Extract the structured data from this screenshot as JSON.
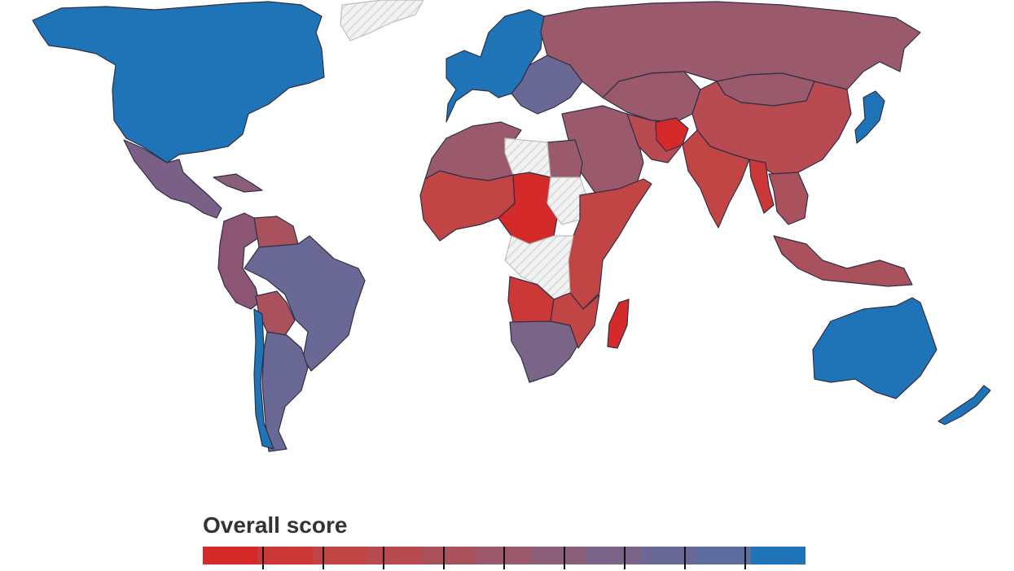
{
  "legend": {
    "title": "Overall score",
    "colors": [
      "#d42a2a",
      "#cc3838",
      "#c24545",
      "#b84a52",
      "#a9525e",
      "#9a5a6c",
      "#8a5f7a",
      "#7a6488",
      "#6a6894",
      "#5e6c9e",
      "#1f74b8"
    ]
  },
  "map": {
    "no_data_pattern": "hatched-grey",
    "regions": [
      {
        "id": "north-america",
        "color": "#1f74b8"
      },
      {
        "id": "greenland",
        "color": "nodata"
      },
      {
        "id": "mexico-central-america",
        "color": "#7a5f86"
      },
      {
        "id": "caribbean",
        "color": "#8a5f7a"
      },
      {
        "id": "south-america-west",
        "color": "#8c5574"
      },
      {
        "id": "venezuela",
        "color": "#a9525e"
      },
      {
        "id": "brazil",
        "color": "#6a6894"
      },
      {
        "id": "bolivia",
        "color": "#a9525e"
      },
      {
        "id": "argentina",
        "color": "#6a6894"
      },
      {
        "id": "chile",
        "color": "#1f74b8"
      },
      {
        "id": "western-europe",
        "color": "#1f74b8"
      },
      {
        "id": "eastern-europe",
        "color": "#6a6894"
      },
      {
        "id": "russia",
        "color": "#9a5a6c"
      },
      {
        "id": "north-africa",
        "color": "#9a5a6c"
      },
      {
        "id": "libya",
        "color": "nodata"
      },
      {
        "id": "west-africa",
        "color": "#c24545"
      },
      {
        "id": "central-africa",
        "color": "#d42a2a"
      },
      {
        "id": "sudan",
        "color": "nodata"
      },
      {
        "id": "congo",
        "color": "nodata"
      },
      {
        "id": "east-africa",
        "color": "#c24545"
      },
      {
        "id": "angola",
        "color": "#cc3838"
      },
      {
        "id": "southern-africa",
        "color": "#7a6488"
      },
      {
        "id": "madagascar",
        "color": "#d42a2a"
      },
      {
        "id": "middle-east",
        "color": "#9a5a6c"
      },
      {
        "id": "iran",
        "color": "#b84a52"
      },
      {
        "id": "afghanistan",
        "color": "#d42a2a"
      },
      {
        "id": "india",
        "color": "#c24545"
      },
      {
        "id": "china",
        "color": "#b84a52"
      },
      {
        "id": "mongolia",
        "color": "#9a5a6c"
      },
      {
        "id": "central-asia",
        "color": "#9a5a6c"
      },
      {
        "id": "southeast-asia",
        "color": "#a9525e"
      },
      {
        "id": "myanmar",
        "color": "#cc3838"
      },
      {
        "id": "indonesia",
        "color": "#a9525e"
      },
      {
        "id": "japan-korea",
        "color": "#1f74b8"
      },
      {
        "id": "australia",
        "color": "#1f74b8"
      },
      {
        "id": "new-zealand",
        "color": "#1f74b8"
      }
    ]
  }
}
